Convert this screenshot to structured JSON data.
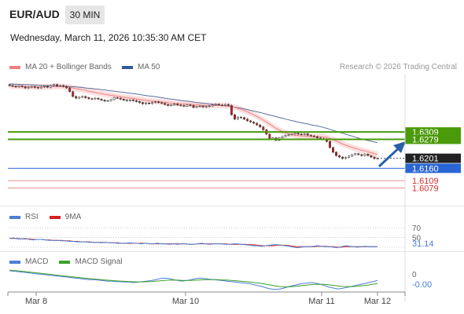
{
  "header": {
    "pair": "EUR/AUD",
    "timeframe": "30 MIN",
    "datetime": "Wednesday, March 11, 2026 10:35:30 AM CET"
  },
  "legend": {
    "ma20": {
      "label": "MA 20 + Bollinger Bands",
      "color": "#f08080"
    },
    "ma50": {
      "label": "MA 50",
      "color": "#2e5b9a"
    }
  },
  "copyright": "Research © 2026 Trading Central",
  "price_labels": {
    "r2": "1.6309",
    "r1": "1.6279",
    "last": "1.6201",
    "pivot": "1.6160",
    "s1": "1.6109",
    "s2": "1.6079"
  },
  "rsi_panel": {
    "rsi_label": "RSI",
    "ma_label": "9MA",
    "level_70": "70",
    "level_50": "50",
    "value": "31.14",
    "rsi_color": "#4a7fd4",
    "ma_color": "#d62020"
  },
  "macd_panel": {
    "macd_label": "MACD",
    "signal_label": "MACD Signal",
    "zero": "0",
    "value": "-0.00",
    "macd_color": "#4a7fd4",
    "signal_color": "#3aa02a"
  },
  "x_axis": {
    "labels": [
      "Mar 8",
      "Mar 10",
      "Mar 11",
      "Mar 12"
    ]
  },
  "colors": {
    "green_line": "#4a9a0a",
    "blue_line": "#2a65d4",
    "red_line": "#e89090",
    "arrow": "#2a5fa8",
    "bb_fill": "#fbd4d4",
    "ma20_line": "#f08080",
    "ma50_line": "#5b6f9e",
    "up_candle": "#ffffff",
    "down_candle": "#c02020"
  },
  "chart_data": [
    {
      "type": "candlestick",
      "title": "EUR/AUD",
      "x_ticks": [
        "Mar 8",
        "Mar 10",
        "Mar 11",
        "Mar 12"
      ],
      "ylim": [
        1.6045,
        1.6545
      ],
      "levels": [
        {
          "value": 1.6309,
          "label": "1.6309",
          "kind": "resistance"
        },
        {
          "value": 1.6279,
          "label": "1.6279",
          "kind": "resistance"
        },
        {
          "value": 1.6201,
          "label": "1.6201",
          "kind": "last"
        },
        {
          "value": 1.616,
          "label": "1.6160",
          "kind": "pivot"
        },
        {
          "value": 1.6109,
          "label": "1.6109",
          "kind": "support"
        },
        {
          "value": 1.6079,
          "label": "1.6079",
          "kind": "support"
        }
      ],
      "close": [
        1.65,
        1.6497,
        1.6494,
        1.6498,
        1.6495,
        1.649,
        1.6493,
        1.6496,
        1.6492,
        1.649,
        1.6494,
        1.6497,
        1.6493,
        1.65,
        1.6504,
        1.6498,
        1.65,
        1.6496,
        1.649,
        1.6475,
        1.6455,
        1.6448,
        1.6452,
        1.6455,
        1.645,
        1.6446,
        1.6445,
        1.6448,
        1.6444,
        1.644,
        1.6436,
        1.6438,
        1.6442,
        1.645,
        1.6448,
        1.6444,
        1.644,
        1.6438,
        1.6441,
        1.6438,
        1.6434,
        1.643,
        1.6425,
        1.6428,
        1.6426,
        1.643,
        1.6433,
        1.643,
        1.6427,
        1.6422,
        1.6418,
        1.642,
        1.6424,
        1.642,
        1.6418,
        1.6415,
        1.642,
        1.6418,
        1.641,
        1.6414,
        1.6416,
        1.6412,
        1.6414,
        1.6416,
        1.642,
        1.6423,
        1.642,
        1.6418,
        1.6422,
        1.6418,
        1.638,
        1.6362,
        1.637,
        1.6368,
        1.6362,
        1.6355,
        1.635,
        1.6345,
        1.6338,
        1.633,
        1.6318,
        1.63,
        1.628,
        1.6285,
        1.6275,
        1.6285,
        1.629,
        1.6295,
        1.6298,
        1.63,
        1.6304,
        1.63,
        1.6298,
        1.6302,
        1.6296,
        1.6293,
        1.629,
        1.6285,
        1.6282,
        1.628,
        1.627,
        1.6245,
        1.6226,
        1.6212,
        1.6206,
        1.62,
        1.6204,
        1.621,
        1.6216,
        1.622,
        1.6216,
        1.6212,
        1.6218,
        1.6212,
        1.6206,
        1.62,
        1.6201
      ],
      "ma20": [
        1.6499,
        1.6498,
        1.6497,
        1.6497,
        1.6496,
        1.6495,
        1.6495,
        1.6495,
        1.6494,
        1.6494,
        1.6494,
        1.6494,
        1.6494,
        1.6495,
        1.6496,
        1.6496,
        1.6496,
        1.6496,
        1.6495,
        1.6493,
        1.649,
        1.6487,
        1.6485,
        1.6483,
        1.648,
        1.6477,
        1.6474,
        1.6472,
        1.6469,
        1.6467,
        1.6464,
        1.6462,
        1.646,
        1.6458,
        1.6456,
        1.6454,
        1.6452,
        1.645,
        1.6449,
        1.6447,
        1.6445,
        1.6443,
        1.6441,
        1.6439,
        1.6437,
        1.6436,
        1.6435,
        1.6434,
        1.6432,
        1.6431,
        1.6429,
        1.6428,
        1.6427,
        1.6426,
        1.6425,
        1.6424,
        1.6424,
        1.6423,
        1.6422,
        1.6421,
        1.642,
        1.6419,
        1.6418,
        1.6418,
        1.6418,
        1.6418,
        1.6418,
        1.6418,
        1.6418,
        1.6416,
        1.6414,
        1.641,
        1.6406,
        1.6402,
        1.6397,
        1.6392,
        1.6386,
        1.638,
        1.6373,
        1.6366,
        1.6358,
        1.635,
        1.6341,
        1.6333,
        1.6324,
        1.6317,
        1.6311,
        1.6306,
        1.6302,
        1.6298,
        1.6296,
        1.6294,
        1.6293,
        1.6292,
        1.6291,
        1.629,
        1.629,
        1.629,
        1.629,
        1.6289,
        1.6287,
        1.6283,
        1.6278,
        1.6272,
        1.6266,
        1.626,
        1.6255,
        1.625,
        1.6246,
        1.6242,
        1.6238,
        1.6234,
        1.6231,
        1.6228,
        1.6224,
        1.622,
        1.6217
      ],
      "ma50": [
        1.6506,
        1.6506,
        1.6505,
        1.6505,
        1.6504,
        1.6504,
        1.6503,
        1.6503,
        1.6502,
        1.6501,
        1.6501,
        1.65,
        1.65,
        1.65,
        1.6499,
        1.6499,
        1.6498,
        1.6498,
        1.6497,
        1.6496,
        1.6495,
        1.6494,
        1.6493,
        1.6492,
        1.649,
        1.6489,
        1.6488,
        1.6486,
        1.6485,
        1.6483,
        1.6482,
        1.648,
        1.6478,
        1.6477,
        1.6475,
        1.6473,
        1.6472,
        1.647,
        1.6468,
        1.6467,
        1.6465,
        1.6463,
        1.6461,
        1.6459,
        1.6457,
        1.6456,
        1.6454,
        1.6452,
        1.645,
        1.6448,
        1.6446,
        1.6444,
        1.6443,
        1.6441,
        1.6439,
        1.6437,
        1.6436,
        1.6434,
        1.6432,
        1.643,
        1.6429,
        1.6427,
        1.6426,
        1.6424,
        1.6423,
        1.6421,
        1.642,
        1.6418,
        1.6417,
        1.6415,
        1.6413,
        1.6411,
        1.6409,
        1.6407,
        1.6404,
        1.6401,
        1.6398,
        1.6395,
        1.6392,
        1.6389,
        1.6386,
        1.6382,
        1.6379,
        1.6376,
        1.6372,
        1.6369,
        1.6366,
        1.6362,
        1.6359,
        1.6356,
        1.6353,
        1.635,
        1.6347,
        1.6344,
        1.6342,
        1.6339,
        1.6336,
        1.6334,
        1.6331,
        1.6328,
        1.6324,
        1.632,
        1.6316,
        1.6312,
        1.6308,
        1.6304,
        1.63,
        1.6296,
        1.6292,
        1.6288,
        1.6284,
        1.628,
        1.6277,
        1.6274,
        1.6271,
        1.6268,
        1.6265
      ],
      "bb_width": 0.0012
    },
    {
      "type": "line",
      "title": "RSI",
      "ylim": [
        25,
        75
      ],
      "levels": [
        70,
        50,
        30
      ],
      "series": [
        {
          "name": "RSI",
          "values": [
            48,
            49,
            47,
            47,
            48,
            46,
            45,
            46,
            46,
            45,
            44,
            44,
            44,
            43,
            43,
            42,
            42,
            41,
            41,
            41,
            40,
            40,
            40,
            39,
            40,
            39,
            39,
            38,
            38,
            38,
            39,
            38,
            38,
            37,
            38,
            37,
            37,
            38,
            37,
            37,
            36,
            37,
            36,
            37,
            37,
            36,
            36,
            37,
            38,
            37,
            36,
            37,
            37,
            37,
            36,
            36,
            37,
            37,
            36,
            35,
            34,
            33,
            33,
            32,
            33,
            34,
            35,
            35,
            34,
            33,
            32,
            30,
            29,
            30,
            31,
            31,
            32,
            33,
            32,
            31,
            31,
            30,
            29,
            31,
            33,
            32,
            31,
            30,
            31,
            32,
            31,
            31,
            31
          ]
        },
        {
          "name": "9MA",
          "values": [
            48,
            48,
            48,
            47,
            47,
            47,
            46,
            46,
            46,
            45,
            45,
            44,
            44,
            44,
            43,
            43,
            42,
            42,
            41,
            41,
            41,
            40,
            40,
            40,
            40,
            39,
            39,
            39,
            38,
            38,
            38,
            38,
            38,
            38,
            38,
            37,
            37,
            37,
            37,
            37,
            37,
            37,
            37,
            37,
            37,
            36,
            36,
            37,
            37,
            37,
            37,
            37,
            37,
            37,
            37,
            36,
            36,
            36,
            36,
            36,
            35,
            35,
            34,
            33,
            33,
            33,
            33,
            34,
            34,
            34,
            33,
            32,
            31,
            31,
            31,
            31,
            31,
            32,
            32,
            32,
            31,
            31,
            30,
            30,
            31,
            31,
            31,
            31,
            31,
            31,
            31,
            31,
            31
          ]
        }
      ],
      "last_value": "31.14"
    },
    {
      "type": "line",
      "title": "MACD",
      "series": [
        {
          "name": "MACD",
          "values": [
            0.3,
            0.25,
            0.2,
            0.15,
            0.1,
            0.05,
            0.0,
            -0.05,
            -0.1,
            -0.15,
            -0.2,
            -0.25,
            -0.3,
            -0.35,
            -0.4,
            -0.45,
            -0.5,
            -0.55,
            -0.6,
            -0.6,
            -0.65,
            -0.7,
            -0.75,
            -0.75,
            -0.8,
            -0.8,
            -0.85,
            -0.85,
            -0.9,
            -0.85,
            -0.8,
            -0.75,
            -0.7,
            -0.6,
            -0.5,
            -0.45,
            -0.5,
            -0.6,
            -0.7,
            -0.75,
            -0.7,
            -0.6,
            -0.5,
            -0.45,
            -0.5,
            -0.55,
            -0.6,
            -0.65,
            -0.7,
            -0.75,
            -0.8,
            -0.85,
            -0.9,
            -0.95,
            -1.0,
            -1.1,
            -1.2,
            -1.3,
            -1.45,
            -1.55,
            -1.6,
            -1.55,
            -1.45,
            -1.3,
            -1.2,
            -1.1,
            -1.0,
            -0.95,
            -0.9,
            -0.95,
            -1.05,
            -1.2,
            -1.35,
            -1.45,
            -1.55,
            -1.5,
            -1.4,
            -1.3,
            -1.2,
            -1.1,
            -1.0,
            -0.9,
            -0.8,
            -0.7
          ]
        },
        {
          "name": "MACD Signal",
          "values": [
            0.35,
            0.32,
            0.28,
            0.24,
            0.19,
            0.14,
            0.09,
            0.04,
            -0.01,
            -0.06,
            -0.11,
            -0.16,
            -0.21,
            -0.26,
            -0.31,
            -0.36,
            -0.41,
            -0.46,
            -0.5,
            -0.54,
            -0.58,
            -0.62,
            -0.66,
            -0.69,
            -0.72,
            -0.75,
            -0.78,
            -0.8,
            -0.82,
            -0.83,
            -0.83,
            -0.82,
            -0.8,
            -0.77,
            -0.73,
            -0.69,
            -0.66,
            -0.65,
            -0.66,
            -0.68,
            -0.69,
            -0.68,
            -0.66,
            -0.63,
            -0.61,
            -0.6,
            -0.6,
            -0.61,
            -0.63,
            -0.65,
            -0.68,
            -0.71,
            -0.75,
            -0.79,
            -0.83,
            -0.88,
            -0.94,
            -1.0,
            -1.08,
            -1.16,
            -1.24,
            -1.3,
            -1.33,
            -1.33,
            -1.3,
            -1.26,
            -1.21,
            -1.16,
            -1.11,
            -1.08,
            -1.07,
            -1.09,
            -1.13,
            -1.18,
            -1.24,
            -1.29,
            -1.31,
            -1.31,
            -1.29,
            -1.25,
            -1.2,
            -1.14,
            -1.07,
            -0.99
          ]
        }
      ],
      "last_value": "-0.00"
    }
  ]
}
